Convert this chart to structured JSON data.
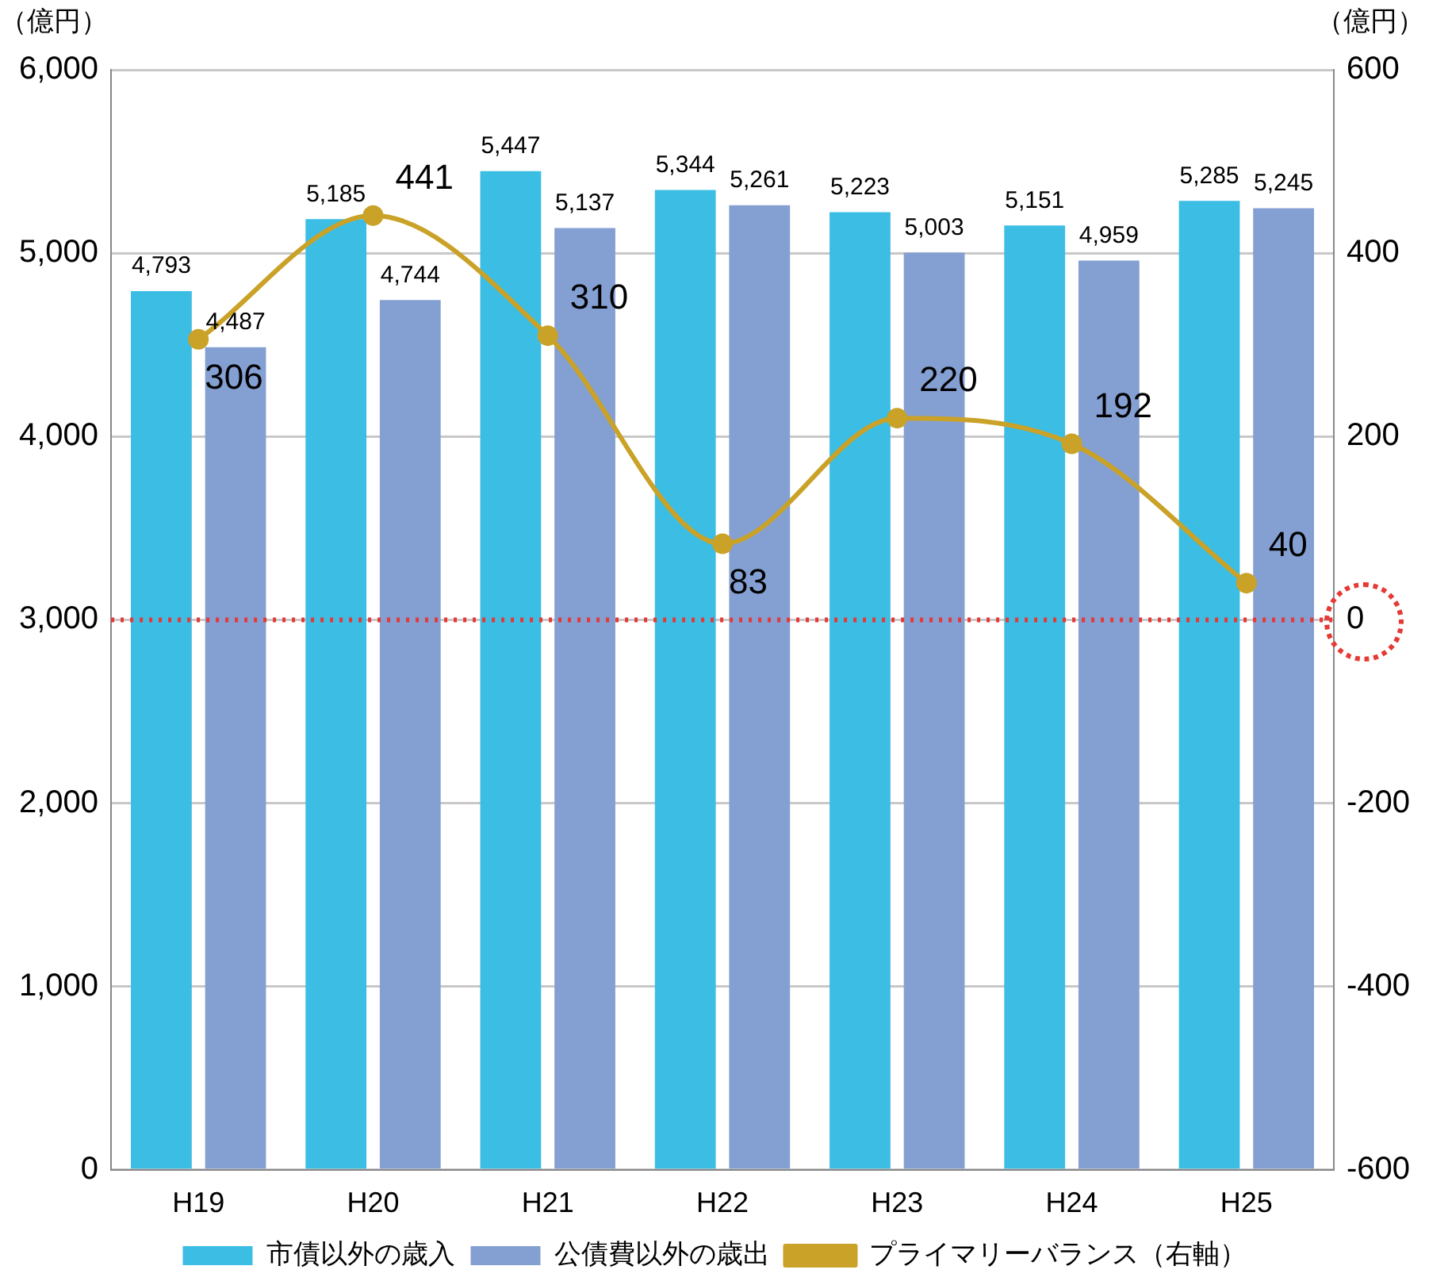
{
  "chart_data": {
    "type": "bar",
    "ylabel": "（億円）",
    "y2label": "（億円）",
    "categories": [
      "H19",
      "H20",
      "H21",
      "H22",
      "H23",
      "H24",
      "H25"
    ],
    "series": [
      {
        "name": "市債以外の歳入",
        "color": "#3bbde4",
        "values": [
          4793,
          5185,
          5447,
          5344,
          5223,
          5151,
          5285
        ],
        "value_labels": [
          "4,793",
          "5,185",
          "5,447",
          "5,344",
          "5,223",
          "5,151",
          "5,285"
        ]
      },
      {
        "name": "公債費以外の歳出",
        "color": "#849fd2",
        "values": [
          4487,
          4744,
          5137,
          5261,
          5003,
          4959,
          5245
        ],
        "value_labels": [
          "4,487",
          "4,744",
          "5,137",
          "5,261",
          "5,003",
          "4,959",
          "5,245"
        ]
      },
      {
        "name": "プライマリーバランス（右軸）",
        "type": "line",
        "axis": "y2",
        "color": "#c9a227",
        "marker": "circle",
        "values": [
          306,
          441,
          310,
          83,
          220,
          192,
          40
        ]
      }
    ],
    "ylim": [
      0,
      6000
    ],
    "yticks": [
      0,
      {
        "value": 1000,
        "label": "1,000"
      },
      {
        "value": 2000,
        "label": "2,000"
      },
      {
        "value": 3000,
        "label": "3,000"
      },
      {
        "value": 4000,
        "label": "4,000"
      },
      {
        "value": 5000,
        "label": "5,000"
      },
      {
        "value": 6000,
        "label": "6,000"
      }
    ],
    "y2lim": [
      -600,
      600
    ],
    "y2ticks": [
      -600,
      -400,
      -200,
      0,
      200,
      400,
      600
    ],
    "ref_lines": [
      {
        "axis": "y2",
        "value": 0,
        "color": "#e53935",
        "line_style": "dotted"
      }
    ],
    "grid": "y",
    "legend": "bottom",
    "data_labels": true
  }
}
